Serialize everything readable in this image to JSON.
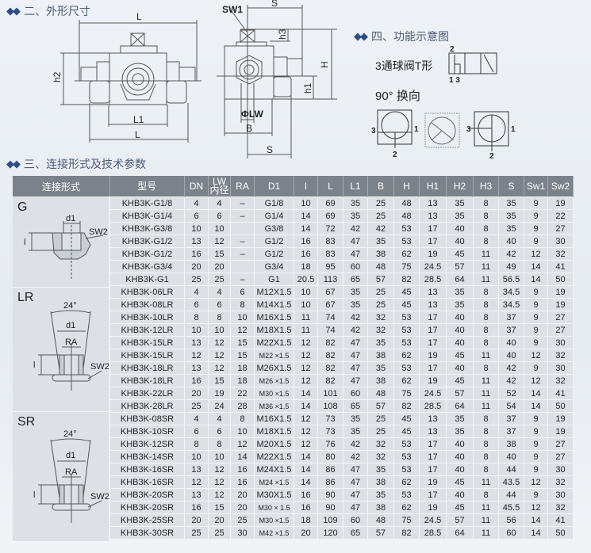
{
  "sections": {
    "dimensions": "二、外形尺寸",
    "params": "三、连接形式及技术参数",
    "function": "四、功能示意图"
  },
  "section_icon": "diamond-cluster-icon",
  "dimension_labels": {
    "L_top": "L",
    "h2": "h2",
    "L1": "L1",
    "L_bottom": "L",
    "SW1": "SW1",
    "S_top": "S",
    "h3": "h3",
    "H": "H",
    "h1": "h1",
    "LW": "ΦLW",
    "B": "B",
    "S_bottom": "S"
  },
  "function_diagram": {
    "valve_type": "3通球阀T形",
    "port_top": "2",
    "port_bottom": "1 3",
    "rotation": "90°  换向",
    "ports": {
      "left": "3",
      "right": "1",
      "bottom": "2"
    }
  },
  "connection_header": "连接形式",
  "groups": [
    {
      "label": "G",
      "d1": "d1",
      "sw2": "SW2",
      "l": "l"
    },
    {
      "label": "LR",
      "angle": "24°",
      "d1": "d1",
      "ra": "RA",
      "sw2": "SW2",
      "l": "l"
    },
    {
      "label": "SR",
      "angle": "24°",
      "d1": "d1",
      "ra": "RA",
      "sw2": "SW2",
      "l": "l"
    }
  ],
  "table": {
    "columns": [
      "型号",
      "DN",
      "LW\n内径",
      "RA",
      "D1",
      "l",
      "L",
      "L1",
      "B",
      "H",
      "H1",
      "H2",
      "H3",
      "S",
      "Sw1",
      "Sw2"
    ],
    "rows": [
      [
        "KHB3K-G1/8",
        "4",
        "4",
        "–",
        "G1/8",
        "10",
        "69",
        "35",
        "25",
        "48",
        "13",
        "35",
        "8",
        "35",
        "9",
        "19"
      ],
      [
        "KHB3K-G1/4",
        "6",
        "6",
        "–",
        "G1/4",
        "14",
        "69",
        "35",
        "25",
        "48",
        "13",
        "35",
        "8",
        "35",
        "9",
        "22"
      ],
      [
        "KHB3K-G3/8",
        "10",
        "10",
        "",
        "G3/8",
        "14",
        "72",
        "42",
        "42",
        "53",
        "17",
        "40",
        "8",
        "35",
        "9",
        "27"
      ],
      [
        "KHB3K-G1/2",
        "13",
        "12",
        "–",
        "G1/2",
        "16",
        "83",
        "47",
        "35",
        "53",
        "17",
        "40",
        "8",
        "40",
        "9",
        "30"
      ],
      [
        "KHB3K-G1/2",
        "16",
        "15",
        "–",
        "G1/2",
        "16",
        "83",
        "47",
        "38",
        "62",
        "19",
        "45",
        "11",
        "42",
        "12",
        "32"
      ],
      [
        "KHB3K-G3/4",
        "20",
        "20",
        "",
        "G3/4",
        "18",
        "95",
        "60",
        "48",
        "75",
        "24.5",
        "57",
        "11",
        "49",
        "14",
        "41"
      ],
      [
        "KHB3K-G1",
        "25",
        "25",
        "–",
        "G1",
        "20.5",
        "113",
        "65",
        "57",
        "82",
        "28.5",
        "64",
        "11",
        "56.5",
        "14",
        "50"
      ],
      [
        "KHB3K-06LR",
        "4",
        "4",
        "6",
        "M12X1.5",
        "10",
        "67",
        "35",
        "25",
        "45",
        "13",
        "35",
        "8",
        "34.5",
        "9",
        "19"
      ],
      [
        "KHB3K-08LR",
        "6",
        "6",
        "8",
        "M14X1.5",
        "10",
        "67",
        "35",
        "25",
        "45",
        "13",
        "35",
        "8",
        "34.5",
        "9",
        "19"
      ],
      [
        "KHB3K-10LR",
        "8",
        "8",
        "10",
        "M16X1.5",
        "11",
        "74",
        "42",
        "32",
        "53",
        "17",
        "40",
        "8",
        "37",
        "9",
        "27"
      ],
      [
        "KHB3K-12LR",
        "10",
        "10",
        "12",
        "M18X1.5",
        "11",
        "74",
        "42",
        "32",
        "53",
        "17",
        "40",
        "8",
        "37",
        "9",
        "27"
      ],
      [
        "KHB3K-15LR",
        "13",
        "12",
        "15",
        "M22X1.5",
        "12",
        "82",
        "47",
        "35",
        "53",
        "17",
        "40",
        "8",
        "40",
        "9",
        "30"
      ],
      [
        "KHB3K-15LR",
        "12",
        "12",
        "15",
        "M22 ×1.5",
        "12",
        "82",
        "47",
        "38",
        "62",
        "19",
        "45",
        "11",
        "40",
        "12",
        "32"
      ],
      [
        "KHB3K-18LR",
        "13",
        "12",
        "18",
        "M26X1.5",
        "12",
        "82",
        "47",
        "35",
        "53",
        "17",
        "40",
        "8",
        "42",
        "9",
        "30"
      ],
      [
        "KHB3K-18LR",
        "16",
        "15",
        "18",
        "M26 ×1.5",
        "12",
        "82",
        "47",
        "38",
        "62",
        "19",
        "45",
        "11",
        "42",
        "12",
        "32"
      ],
      [
        "KHB3K-22LR",
        "20",
        "19",
        "22",
        "M30 ×1.5",
        "14",
        "101",
        "60",
        "48",
        "75",
        "24.5",
        "57",
        "11",
        "52",
        "14",
        "41"
      ],
      [
        "KHB3K-28LR",
        "25",
        "24",
        "28",
        "M36 ×1.5",
        "14",
        "108",
        "65",
        "57",
        "82",
        "28.5",
        "64",
        "11",
        "54",
        "14",
        "50"
      ],
      [
        "KHB3K-08SR",
        "4",
        "4",
        "8",
        "M16X1.5",
        "12",
        "73",
        "35",
        "25",
        "45",
        "13",
        "35",
        "8",
        "37",
        "9",
        "19"
      ],
      [
        "KHB3K-10SR",
        "6",
        "6",
        "10",
        "M18X1.5",
        "12",
        "73",
        "35",
        "25",
        "45",
        "13",
        "35",
        "8",
        "37",
        "9",
        "19"
      ],
      [
        "KHB3K-12SR",
        "8",
        "8",
        "12",
        "M20X1.5",
        "12",
        "76",
        "42",
        "32",
        "53",
        "17",
        "40",
        "8",
        "38",
        "9",
        "27"
      ],
      [
        "KHB3K-14SR",
        "10",
        "10",
        "14",
        "M22X1.5",
        "14",
        "80",
        "42",
        "32",
        "53",
        "17",
        "40",
        "8",
        "40",
        "9",
        "27"
      ],
      [
        "KHB3K-16SR",
        "13",
        "12",
        "16",
        "M24X1.5",
        "14",
        "86",
        "47",
        "35",
        "53",
        "17",
        "40",
        "8",
        "44",
        "9",
        "30"
      ],
      [
        "KHB3K-16SR",
        "12",
        "12",
        "16",
        "M24 ×1.5",
        "14",
        "86",
        "47",
        "38",
        "62",
        "19",
        "45",
        "11",
        "43.5",
        "12",
        "32"
      ],
      [
        "KHB3K-20SR",
        "13",
        "12",
        "20",
        "M30X1.5",
        "16",
        "90",
        "47",
        "35",
        "53",
        "17",
        "40",
        "8",
        "44",
        "9",
        "30"
      ],
      [
        "KHB3K-20SR",
        "16",
        "15",
        "20",
        "M30 × 1.5",
        "16",
        "90",
        "47",
        "38",
        "62",
        "19",
        "45",
        "11",
        "45.5",
        "12",
        "32"
      ],
      [
        "KHB3K-25SR",
        "20",
        "20",
        "25",
        "M30 ×1.5",
        "18",
        "109",
        "60",
        "48",
        "75",
        "24.5",
        "57",
        "11",
        "56",
        "14",
        "41"
      ],
      [
        "KHB3K-30SR",
        "25",
        "25",
        "30",
        "M42 ×1.5",
        "20",
        "120",
        "65",
        "57",
        "82",
        "28.5",
        "64",
        "11",
        "60",
        "14",
        "50"
      ]
    ]
  },
  "colors": {
    "header_bg": "#7c828a",
    "cell_bg": "#dde1e6",
    "section_text": "#4a5a78",
    "diamond": "#2d4f86"
  }
}
